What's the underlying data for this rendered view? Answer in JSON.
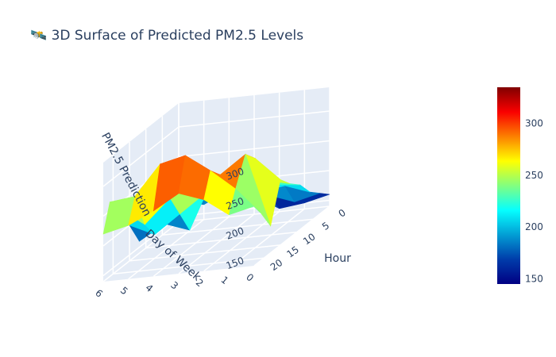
{
  "title": "🛰️ 3D Surface of Predicted PM2.5 Levels",
  "chart_data": {
    "type": "surface",
    "title": "🛰️ 3D Surface of Predicted PM2.5 Levels",
    "x_axis": {
      "label": "Hour",
      "ticks": [
        "0",
        "5",
        "10",
        "15",
        "20"
      ],
      "range": [
        0,
        23
      ]
    },
    "y_axis": {
      "label": "Day of Week",
      "ticks": [
        "0",
        "1",
        "2",
        "3",
        "4",
        "5",
        "6"
      ],
      "range": [
        0,
        6
      ]
    },
    "z_axis": {
      "label": "PM2.5 Prediction",
      "ticks": [
        "150",
        "200",
        "250",
        "300"
      ],
      "range": [
        140,
        340
      ]
    },
    "colorscale": "Jet",
    "colorbar": {
      "ticks": [
        "150",
        "200",
        "250",
        "300"
      ],
      "range": [
        145,
        335
      ]
    },
    "hours": [
      0,
      3,
      6,
      9,
      12,
      15,
      18,
      21,
      23
    ],
    "days": [
      0,
      1,
      2,
      3,
      4,
      5,
      6
    ],
    "z": [
      [
        160,
        175,
        190,
        215,
        230,
        250,
        185,
        220,
        240
      ],
      [
        150,
        165,
        205,
        220,
        240,
        290,
        310,
        265,
        230
      ],
      [
        145,
        180,
        200,
        230,
        250,
        265,
        280,
        300,
        260
      ],
      [
        170,
        190,
        210,
        245,
        260,
        240,
        290,
        330,
        275
      ],
      [
        185,
        200,
        220,
        200,
        170,
        210,
        250,
        320,
        250
      ],
      [
        165,
        195,
        225,
        215,
        185,
        180,
        210,
        270,
        230
      ],
      [
        175,
        205,
        215,
        190,
        160,
        200,
        240,
        265,
        220
      ]
    ]
  }
}
